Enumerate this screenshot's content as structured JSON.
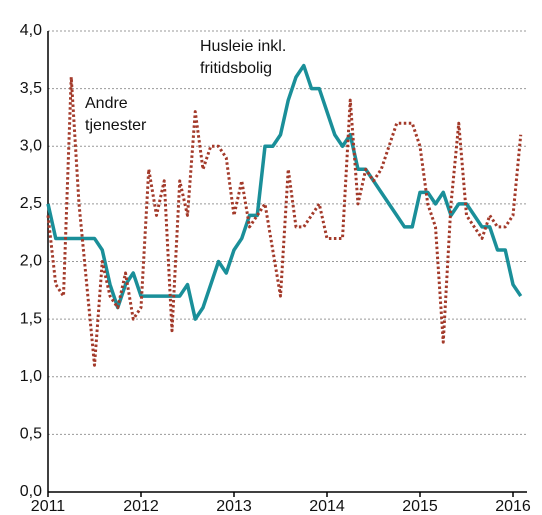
{
  "chart_data": {
    "type": "line",
    "categories": [
      "2011",
      null,
      null,
      null,
      null,
      null,
      null,
      null,
      null,
      null,
      null,
      null,
      "2012",
      null,
      null,
      null,
      null,
      null,
      null,
      null,
      null,
      null,
      null,
      null,
      "2013",
      null,
      null,
      null,
      null,
      null,
      null,
      null,
      null,
      null,
      null,
      null,
      "2014",
      null,
      null,
      null,
      null,
      null,
      null,
      null,
      null,
      null,
      null,
      null,
      "2015",
      null,
      null,
      null,
      null,
      null,
      null,
      null,
      null,
      null,
      null,
      null,
      "2016",
      null
    ],
    "series": [
      {
        "name": [
          "Husleie inkl.",
          "fritidsbolig"
        ],
        "color": "#1a8f99",
        "style": "solid",
        "values": [
          2.5,
          2.2,
          2.2,
          2.2,
          2.2,
          2.2,
          2.2,
          2.1,
          1.8,
          1.6,
          1.8,
          1.9,
          1.7,
          1.7,
          1.7,
          1.7,
          1.7,
          1.7,
          1.8,
          1.5,
          1.6,
          1.8,
          2.0,
          1.9,
          2.1,
          2.2,
          2.4,
          2.4,
          3.0,
          3.0,
          3.1,
          3.4,
          3.6,
          3.7,
          3.5,
          3.5,
          3.3,
          3.1,
          3.0,
          3.1,
          2.8,
          2.8,
          2.7,
          2.6,
          2.5,
          2.4,
          2.3,
          2.3,
          2.6,
          2.6,
          2.5,
          2.6,
          2.4,
          2.5,
          2.5,
          2.4,
          2.3,
          2.3,
          2.1,
          2.1,
          1.8,
          1.7
        ]
      },
      {
        "name": [
          "Andre",
          "tjenester"
        ],
        "color": "#a33a2a",
        "style": "dotted",
        "values": [
          2.4,
          1.8,
          1.7,
          3.6,
          2.5,
          1.8,
          1.1,
          2.0,
          1.7,
          1.6,
          1.9,
          1.5,
          1.6,
          2.8,
          2.4,
          2.7,
          1.4,
          2.7,
          2.4,
          3.3,
          2.8,
          3.0,
          3.0,
          2.9,
          2.4,
          2.7,
          2.3,
          2.4,
          2.5,
          2.1,
          1.7,
          2.8,
          2.3,
          2.3,
          2.4,
          2.5,
          2.2,
          2.2,
          2.2,
          3.4,
          2.5,
          2.8,
          2.7,
          2.8,
          3.0,
          3.2,
          3.2,
          3.2,
          3.0,
          2.5,
          2.3,
          1.3,
          2.5,
          3.2,
          2.4,
          2.3,
          2.2,
          2.4,
          2.3,
          2.3,
          2.4,
          3.1
        ]
      }
    ],
    "ylim": [
      0,
      4
    ],
    "yticks": [
      {
        "value": 0,
        "label": "0,0"
      },
      {
        "value": 0.5,
        "label": "0,5"
      },
      {
        "value": 1,
        "label": "1,0"
      },
      {
        "value": 1.5,
        "label": "1,5"
      },
      {
        "value": 2,
        "label": "2,0"
      },
      {
        "value": 2.5,
        "label": "2,5"
      },
      {
        "value": 3,
        "label": "3,0"
      },
      {
        "value": 3.5,
        "label": "3,5"
      },
      {
        "value": 4,
        "label": "4,0"
      }
    ],
    "grid": true
  }
}
